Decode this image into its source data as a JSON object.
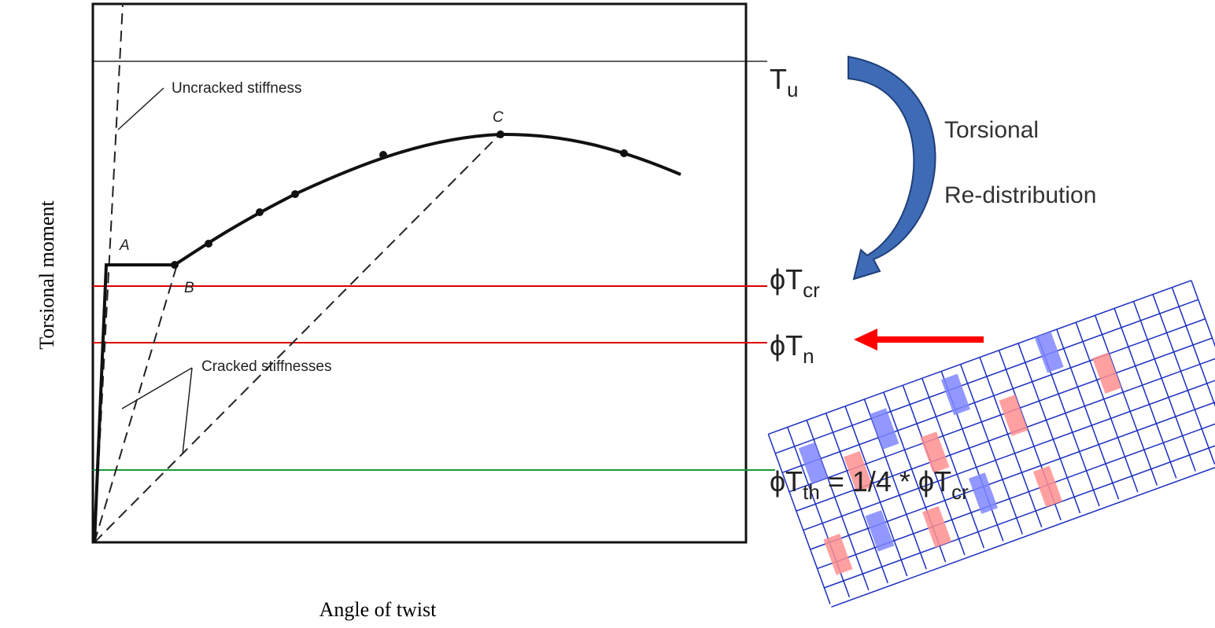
{
  "chart_labels": {
    "y_axis": "Torsional moment",
    "x_axis": "Angle of twist",
    "uncracked": "Uncracked stiffness",
    "cracked": "Cracked stiffnesses",
    "point_a": "A",
    "point_b": "B",
    "point_c": "C"
  },
  "levels": {
    "tu": {
      "text": "T",
      "sub": "u"
    },
    "tcr": {
      "text": "ϕT",
      "sub": "cr"
    },
    "tn": {
      "text": "ϕT",
      "sub": "n"
    },
    "tth": [
      {
        "text": "ϕT",
        "sub": "th"
      },
      {
        "text": " = 1/4 * ϕT",
        "sub": "cr"
      }
    ]
  },
  "redistribution": {
    "line1": "Torsional",
    "line2": "Re-distribution"
  }
}
